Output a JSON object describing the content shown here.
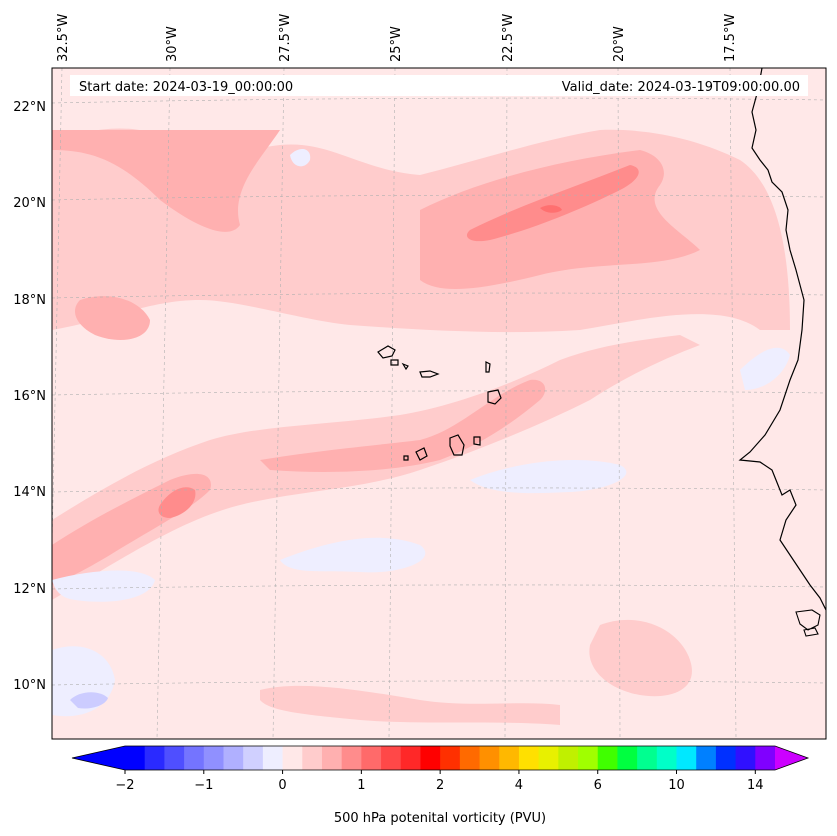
{
  "map": {
    "start_date_label": "Start date: 2024-03-19_00:00:00",
    "valid_date_label": "Valid_date: 2024-03-19T09:00:00.00",
    "longitude_labels": [
      "32.5°W",
      "30°W",
      "27.5°W",
      "25°W",
      "22.5°W",
      "20°W",
      "17.5°W"
    ],
    "latitude_labels": [
      "22°N",
      "20°N",
      "18°N",
      "16°N",
      "14°N",
      "12°N",
      "10°N"
    ],
    "variable": "500 hPa potential vorticity",
    "colors": {
      "background_field": "#ffe8e8",
      "light_red": "#ffcccc",
      "mid_red": "#ffb0b0",
      "strong_red": "#ff8c8c",
      "light_blue": "#eeeeff",
      "mid_blue": "#ccccff",
      "coastline": "#000000"
    }
  },
  "colorbar": {
    "title": "500 hPa potenital vorticity (PVU)",
    "tick_labels": [
      "−2",
      "−1",
      "0",
      "1",
      "2",
      "4",
      "6",
      "10",
      "14"
    ],
    "colors": [
      "#0000ff",
      "#2a2aff",
      "#4f4fff",
      "#7474ff",
      "#9090ff",
      "#b0b0ff",
      "#d0d0ff",
      "#eeeeff",
      "#ffe8e8",
      "#ffcccc",
      "#ffb0b0",
      "#ff8c8c",
      "#ff6a6a",
      "#ff4848",
      "#ff2828",
      "#ff0000",
      "#ff3000",
      "#ff6a00",
      "#ff9000",
      "#ffb800",
      "#ffe000",
      "#e8f000",
      "#c0f000",
      "#a0ff00",
      "#40ff00",
      "#00ff40",
      "#00ff90",
      "#00ffc8",
      "#00e8ff",
      "#0080ff",
      "#0030ff",
      "#3010ff",
      "#8000ff"
    ],
    "under_color": "#0000ff",
    "over_color": "#cc00ff"
  }
}
